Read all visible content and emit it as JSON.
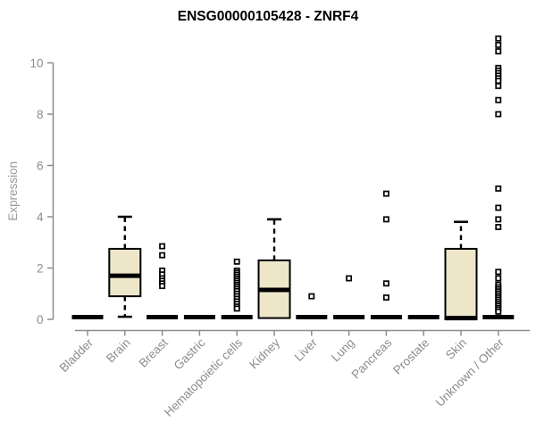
{
  "page": {
    "background": "#ffffff"
  },
  "chart_data": {
    "type": "boxplot",
    "title": "ENSG00000105428 - ZNRF4",
    "xlabel": "",
    "ylabel": "Expression",
    "ylim": [
      0,
      11.2
    ],
    "yticks": [
      0,
      2,
      4,
      6,
      8,
      10
    ],
    "grid": false,
    "legend": "none",
    "colors": {
      "box_fill": "#EDE6C9",
      "box_stroke": "#000000",
      "median": "#000000",
      "whisker": "#000000",
      "outlier_stroke": "#000000",
      "outlier_fill": "#ffffff",
      "axis": "#8C8C8C",
      "tick_label": "#8C8C8C",
      "axis_label": "#9A9A9A",
      "title": "#000000"
    },
    "categories": [
      "Bladder",
      "Brain",
      "Breast",
      "Gastric",
      "Hematopoietic cells",
      "Kidney",
      "Liver",
      "Lung",
      "Pancreas",
      "Prostate",
      "Skin",
      "Unknown / Other"
    ],
    "series": [
      {
        "name": "Bladder",
        "q1": 0,
        "median": 0,
        "q3": 0,
        "whisker_low": 0,
        "whisker_high": 0,
        "outliers": []
      },
      {
        "name": "Brain",
        "q1": 0.9,
        "median": 1.7,
        "q3": 2.75,
        "whisker_low": 0.1,
        "whisker_high": 4.0,
        "outliers": []
      },
      {
        "name": "Breast",
        "q1": 0,
        "median": 0,
        "q3": 0,
        "whisker_low": 0,
        "whisker_high": 0,
        "outliers": [
          2.85,
          2.5,
          1.9,
          1.75,
          1.6,
          1.5,
          1.4,
          1.3
        ]
      },
      {
        "name": "Gastric",
        "q1": 0,
        "median": 0,
        "q3": 0,
        "whisker_low": 0,
        "whisker_high": 0,
        "outliers": []
      },
      {
        "name": "Hematopoietic cells",
        "q1": 0,
        "median": 0,
        "q3": 0,
        "whisker_low": 0,
        "whisker_high": 0,
        "outliers": [
          2.25,
          1.9,
          1.82,
          1.74,
          1.66,
          1.58,
          1.5,
          1.42,
          1.34,
          1.26,
          1.18,
          1.1,
          1.0,
          0.9,
          0.8,
          0.7,
          0.6,
          0.5,
          0.42
        ]
      },
      {
        "name": "Kidney",
        "q1": 0.05,
        "median": 1.15,
        "q3": 2.3,
        "whisker_low": 0.05,
        "whisker_high": 3.9,
        "outliers": []
      },
      {
        "name": "Liver",
        "q1": 0,
        "median": 0,
        "q3": 0,
        "whisker_low": 0,
        "whisker_high": 0,
        "outliers": [
          0.9
        ]
      },
      {
        "name": "Lung",
        "q1": 0,
        "median": 0,
        "q3": 0,
        "whisker_low": 0,
        "whisker_high": 0,
        "outliers": [
          1.6
        ]
      },
      {
        "name": "Pancreas",
        "q1": 0,
        "median": 0,
        "q3": 0,
        "whisker_low": 0,
        "whisker_high": 0,
        "outliers": [
          4.9,
          3.9,
          1.4,
          0.85
        ]
      },
      {
        "name": "Prostate",
        "q1": 0,
        "median": 0,
        "q3": 0,
        "whisker_low": 0,
        "whisker_high": 0,
        "outliers": []
      },
      {
        "name": "Skin",
        "q1": 0,
        "median": 0.05,
        "q3": 2.75,
        "whisker_low": 0,
        "whisker_high": 3.8,
        "outliers": []
      },
      {
        "name": "Unknown / Other",
        "q1": 0,
        "median": 0,
        "q3": 0,
        "whisker_low": 0,
        "whisker_high": 0,
        "outliers": [
          10.95,
          10.7,
          10.45,
          9.8,
          9.7,
          9.6,
          9.5,
          9.4,
          9.3,
          9.1,
          8.55,
          8.0,
          5.1,
          4.35,
          3.9,
          3.6,
          1.85,
          1.6,
          1.35,
          1.25,
          1.17,
          1.09,
          1.01,
          0.93,
          0.85,
          0.77,
          0.69,
          0.61,
          0.53,
          0.45,
          0.38,
          0.3
        ]
      }
    ]
  }
}
